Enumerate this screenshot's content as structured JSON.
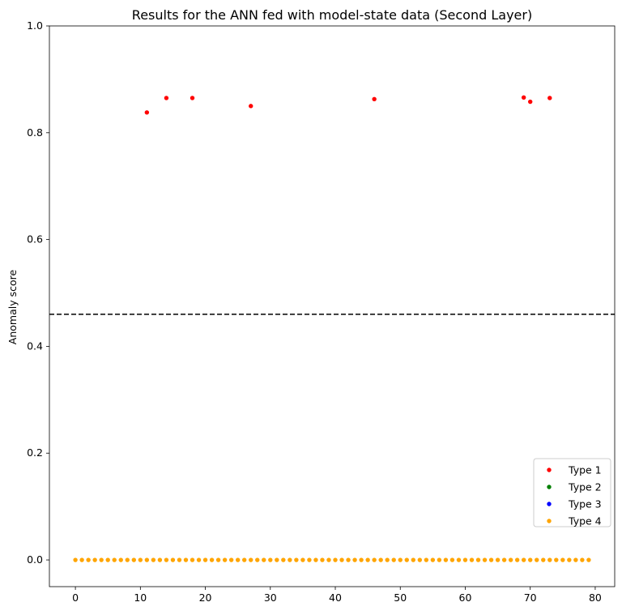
{
  "chart_data": {
    "type": "scatter",
    "title": "Results for the ANN fed with model-state data (Second Layer)",
    "xlabel": "",
    "ylabel": "Anomaly score",
    "xlim": [
      -4,
      83
    ],
    "ylim": [
      -0.05,
      1.0
    ],
    "xticks": [
      0,
      10,
      20,
      30,
      40,
      50,
      60,
      70,
      80
    ],
    "yticks": [
      0.0,
      0.2,
      0.4,
      0.6,
      0.8,
      1.0
    ],
    "threshold": 0.46,
    "legend_position": "lower-right",
    "series": [
      {
        "name": "Type 1",
        "color": "#ff0000",
        "points": [
          [
            11,
            0.838
          ],
          [
            14,
            0.865
          ],
          [
            18,
            0.865
          ],
          [
            27,
            0.85
          ],
          [
            46,
            0.863
          ],
          [
            69,
            0.866
          ],
          [
            70,
            0.858
          ],
          [
            73,
            0.865
          ]
        ]
      },
      {
        "name": "Type 2",
        "color": "#008000",
        "points": []
      },
      {
        "name": "Type 3",
        "color": "#0000ff",
        "points": []
      },
      {
        "name": "Type 4",
        "color": "#ffa500",
        "x_range": [
          0,
          79
        ],
        "y": 0.0
      }
    ]
  }
}
